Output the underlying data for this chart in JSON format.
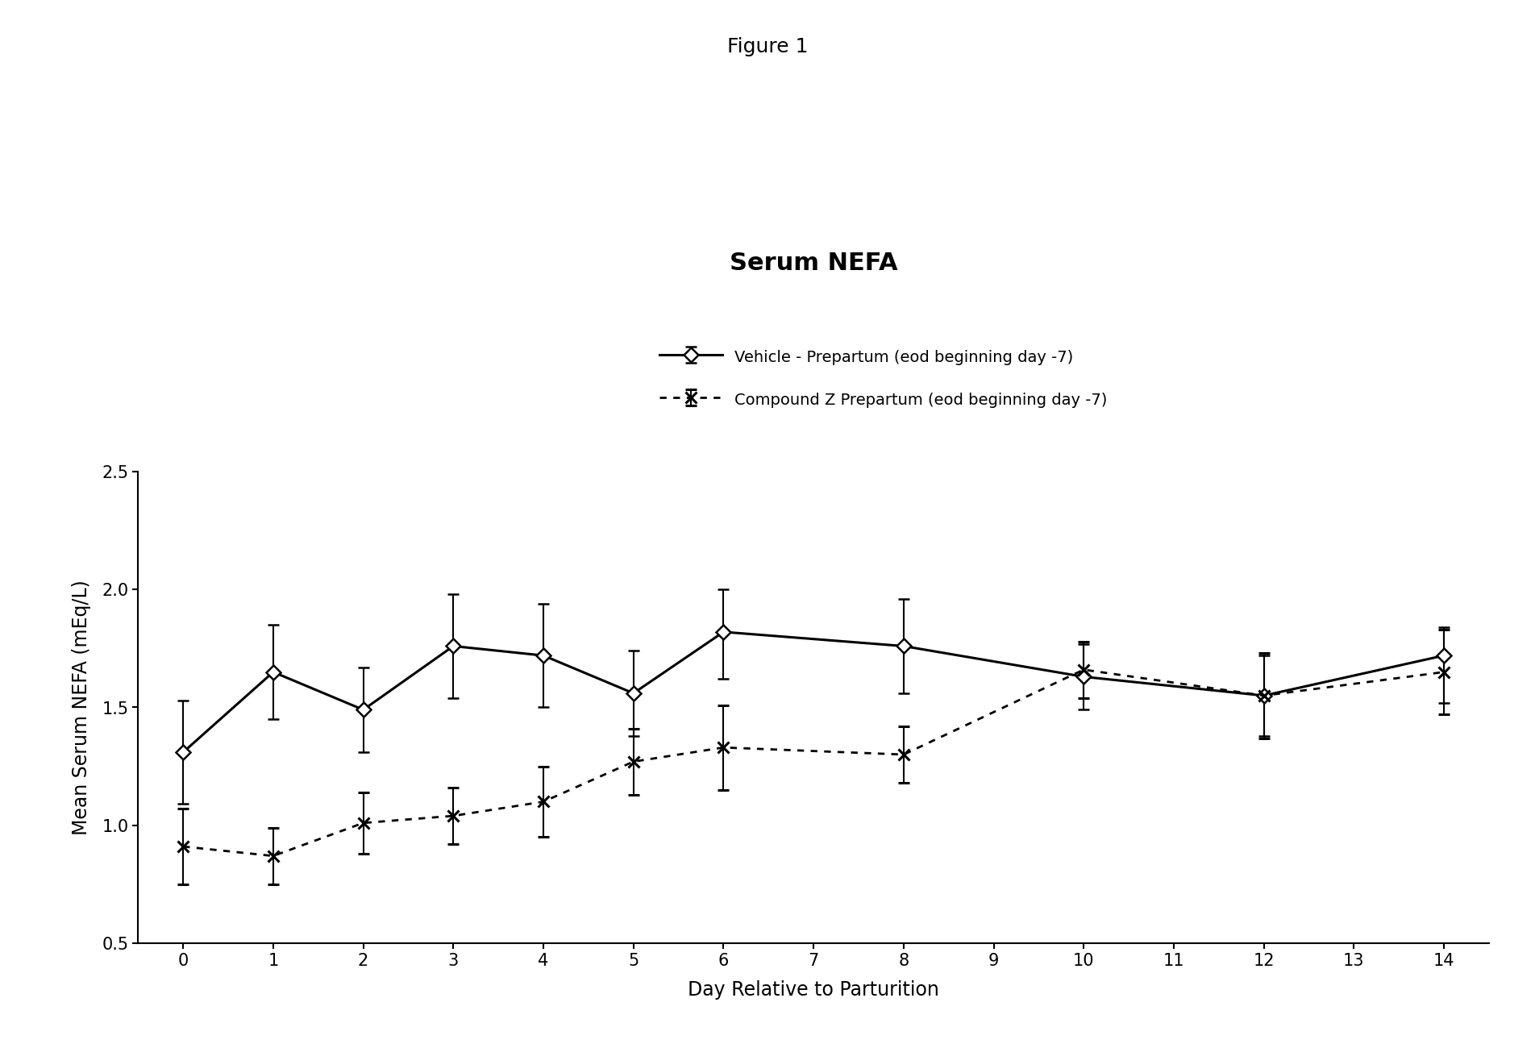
{
  "title_figure": "Figure 1",
  "title_chart": "Serum NEFA",
  "xlabel": "Day Relative to Parturition",
  "ylabel": "Mean Serum NEFA (mEq/L)",
  "ylim": [
    0.5,
    2.5
  ],
  "yticks": [
    0.5,
    1.0,
    1.5,
    2.0,
    2.5
  ],
  "xticks": [
    0,
    1,
    2,
    3,
    4,
    5,
    6,
    7,
    8,
    9,
    10,
    11,
    12,
    13,
    14
  ],
  "vehicle": {
    "x": [
      0,
      1,
      2,
      3,
      4,
      5,
      6,
      8,
      10,
      12,
      14
    ],
    "y": [
      1.31,
      1.65,
      1.49,
      1.76,
      1.72,
      1.56,
      1.82,
      1.76,
      1.63,
      1.55,
      1.72
    ],
    "yerr_low": [
      0.22,
      0.2,
      0.18,
      0.22,
      0.22,
      0.18,
      0.2,
      0.2,
      0.14,
      0.17,
      0.2
    ],
    "yerr_high": [
      0.22,
      0.2,
      0.18,
      0.22,
      0.22,
      0.18,
      0.18,
      0.2,
      0.14,
      0.17,
      0.12
    ],
    "label": "Vehicle - Prepartum (eod beginning day -7)"
  },
  "compound": {
    "x": [
      0,
      1,
      2,
      3,
      4,
      5,
      6,
      8,
      10,
      12,
      14
    ],
    "y": [
      0.91,
      0.87,
      1.01,
      1.04,
      1.1,
      1.27,
      1.33,
      1.3,
      1.66,
      1.55,
      1.65
    ],
    "yerr_low": [
      0.16,
      0.12,
      0.13,
      0.12,
      0.15,
      0.14,
      0.18,
      0.12,
      0.12,
      0.18,
      0.18
    ],
    "yerr_high": [
      0.16,
      0.12,
      0.13,
      0.12,
      0.15,
      0.14,
      0.18,
      0.12,
      0.12,
      0.18,
      0.18
    ],
    "label": "Compound Z Prepartum (eod beginning day -7)"
  },
  "background_color": "#ffffff",
  "figure_title_fontsize": 18,
  "chart_title_fontsize": 22,
  "axis_label_fontsize": 17,
  "tick_fontsize": 15,
  "legend_fontsize": 14
}
